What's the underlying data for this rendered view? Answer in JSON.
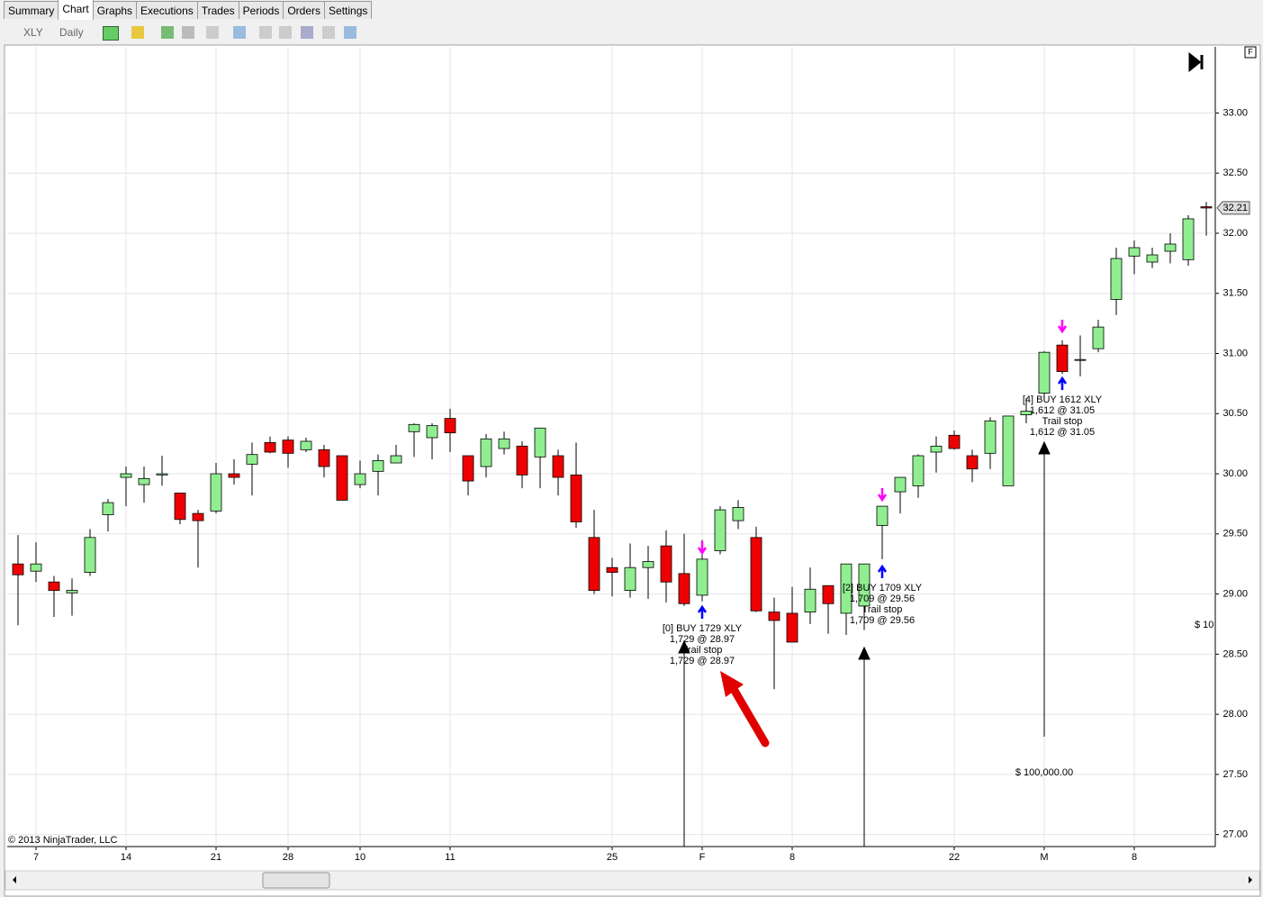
{
  "tabs": [
    "Summary",
    "Chart",
    "Graphs",
    "Executions",
    "Trades",
    "Periods",
    "Orders",
    "Settings"
  ],
  "toolbar": {
    "instrument": "XLY",
    "period": "Daily"
  },
  "chart_data": {
    "type": "candlestick",
    "categories": [
      null,
      "7",
      null,
      null,
      null,
      null,
      "14",
      null,
      null,
      null,
      null,
      "21",
      null,
      null,
      null,
      "28",
      null,
      null,
      null,
      "10",
      null,
      null,
      null,
      null,
      "11",
      null,
      null,
      null,
      null,
      null,
      null,
      null,
      null,
      "25",
      null,
      null,
      null,
      null,
      "F",
      null,
      null,
      null,
      null,
      "8",
      null,
      null,
      null,
      null,
      null,
      null,
      null,
      null,
      "22",
      null,
      null,
      null,
      null,
      "M",
      null,
      null,
      null,
      null,
      "8",
      null,
      null,
      null,
      null
    ],
    "open": [
      29.25,
      29.19,
      29.1,
      29.01,
      29.18,
      29.66,
      29.97,
      29.91,
      29.99,
      29.84,
      29.67,
      29.69,
      30.0,
      30.08,
      30.26,
      30.28,
      30.2,
      30.2,
      30.15,
      29.91,
      30.02,
      30.09,
      30.35,
      30.3,
      30.46,
      30.15,
      30.06,
      30.21,
      30.23,
      30.14,
      30.15,
      29.99,
      29.47,
      29.22,
      29.03,
      29.22,
      29.4,
      29.17,
      28.99,
      29.36,
      29.61,
      29.47,
      28.85,
      28.84,
      28.85,
      29.07,
      28.84,
      28.9,
      29.57,
      29.85,
      29.9,
      30.18,
      30.32,
      30.15,
      30.17,
      29.9,
      30.49,
      30.67,
      31.07,
      30.95,
      31.04,
      31.45,
      31.81,
      31.76,
      31.85,
      31.78,
      32.22
    ],
    "high": [
      29.49,
      29.43,
      29.15,
      29.13,
      29.54,
      29.79,
      30.06,
      30.06,
      30.15,
      29.84,
      29.7,
      30.09,
      30.12,
      30.26,
      30.31,
      30.31,
      30.3,
      30.24,
      30.15,
      30.11,
      30.16,
      30.24,
      30.42,
      30.42,
      30.54,
      30.15,
      30.33,
      30.35,
      30.27,
      30.38,
      30.2,
      30.26,
      29.7,
      29.3,
      29.42,
      29.4,
      29.53,
      29.5,
      29.45,
      29.73,
      29.78,
      29.56,
      28.97,
      29.06,
      29.22,
      29.07,
      29.25,
      29.25,
      29.73,
      29.97,
      30.16,
      30.31,
      30.36,
      30.2,
      30.47,
      30.48,
      30.63,
      31.02,
      31.11,
      31.15,
      31.28,
      31.88,
      31.94,
      31.88,
      32.0,
      32.15,
      32.26
    ],
    "low": [
      28.74,
      29.1,
      28.81,
      28.82,
      29.15,
      29.52,
      29.73,
      29.76,
      29.9,
      29.58,
      29.22,
      29.67,
      29.91,
      29.82,
      30.17,
      30.05,
      30.18,
      29.97,
      29.78,
      29.88,
      29.82,
      30.09,
      30.14,
      30.12,
      30.18,
      29.82,
      29.97,
      30.16,
      29.88,
      29.88,
      29.82,
      29.55,
      29.0,
      28.98,
      28.97,
      28.96,
      28.93,
      28.9,
      28.94,
      29.33,
      29.54,
      28.85,
      28.21,
      28.6,
      28.75,
      28.67,
      28.66,
      28.7,
      29.29,
      29.67,
      29.8,
      30.01,
      30.2,
      29.93,
      30.04,
      29.9,
      30.42,
      30.62,
      30.83,
      30.81,
      31.01,
      31.32,
      31.66,
      31.71,
      31.75,
      31.73,
      31.98
    ],
    "close": [
      29.16,
      29.25,
      29.03,
      29.03,
      29.47,
      29.76,
      30.0,
      29.96,
      30.0,
      29.62,
      29.61,
      30.0,
      29.97,
      30.16,
      30.18,
      30.17,
      30.27,
      30.06,
      29.78,
      30.0,
      30.11,
      30.15,
      30.41,
      30.4,
      30.34,
      29.94,
      30.29,
      30.29,
      29.99,
      30.38,
      29.97,
      29.6,
      29.03,
      29.18,
      29.22,
      29.27,
      29.1,
      28.92,
      29.29,
      29.7,
      29.72,
      28.86,
      28.78,
      28.6,
      29.04,
      28.92,
      29.25,
      29.25,
      29.73,
      29.97,
      30.15,
      30.23,
      30.21,
      30.04,
      30.44,
      30.48,
      30.52,
      31.01,
      30.85,
      30.95,
      31.22,
      31.79,
      31.88,
      31.82,
      31.91,
      32.12,
      32.21
    ],
    "up_color": "#90ee90",
    "down_color": "#ee0000",
    "ylim": [
      26.9,
      33.55
    ],
    "yticks": [
      {
        "value": 27,
        "label": "27.00"
      },
      {
        "value": 27.5,
        "label": "27.50"
      },
      {
        "value": 28,
        "label": "28.00"
      },
      {
        "value": 28.5,
        "label": "28.50"
      },
      {
        "value": 29,
        "label": "29.00"
      },
      {
        "value": 29.5,
        "label": "29.50"
      },
      {
        "value": 30,
        "label": "30.00"
      },
      {
        "value": 30.5,
        "label": "30.50"
      },
      {
        "value": 31,
        "label": "31.00"
      },
      {
        "value": 31.5,
        "label": "31.50"
      },
      {
        "value": 32,
        "label": "32.00"
      },
      {
        "value": 32.5,
        "label": "32.50"
      },
      {
        "value": 33,
        "label": "33.00"
      }
    ],
    "grid": true,
    "last_price": 32.21,
    "trade_labels": [
      [
        "[0] BUY 1729 XLY",
        "1,729 @ 28.97",
        "Trail stop",
        "1,729 @ 28.97"
      ],
      [
        "[2] BUY 1709 XLY",
        "1,709 @ 29.56",
        "Trail stop",
        "1,709 @ 29.56"
      ],
      [
        "[4] BUY 1612 XLY",
        "1,612 @ 31.05",
        "Trail stop",
        "1,612 @ 31.05"
      ]
    ],
    "account_labels": [
      "$ 100,000.00",
      "$ 10"
    ],
    "corner_label": "F",
    "copyright": "© 2013 NinjaTrader, LLC"
  }
}
